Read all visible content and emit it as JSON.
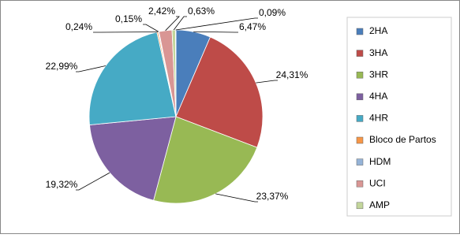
{
  "chart_data": {
    "type": "pie",
    "categories": [
      "2HA",
      "3HA",
      "3HR",
      "4HA",
      "4HR",
      "Bloco de Partos",
      "HDM",
      "UCI",
      "AMP",
      null
    ],
    "values": [
      6.47,
      24.31,
      23.37,
      19.32,
      22.99,
      0.24,
      0.15,
      2.42,
      0.63,
      0.09
    ],
    "value_labels": [
      "6,47%",
      "24,31%",
      "23,37%",
      "19,32%",
      "22,99%",
      "0,24%",
      "0,15%",
      "2,42%",
      "0,63%",
      "0,09%"
    ],
    "colors": [
      "#4a7ebb",
      "#be4b48",
      "#98b954",
      "#7d60a0",
      "#46aac5",
      "#f79646",
      "#95b3d7",
      "#d99694",
      "#c3d69b",
      "#b3a2c7"
    ],
    "legend": "right"
  }
}
